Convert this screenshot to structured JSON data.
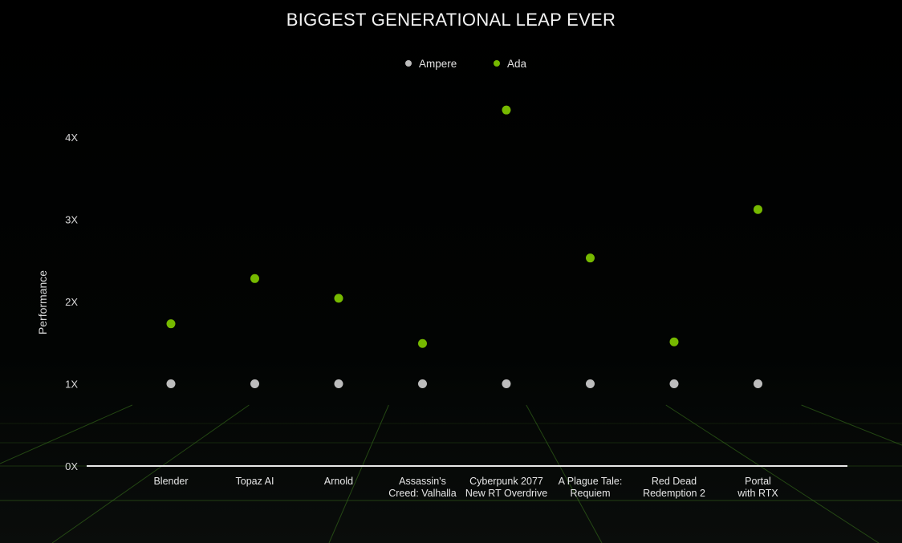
{
  "chart_data": {
    "type": "scatter",
    "title": "BIGGEST GENERATIONAL LEAP EVER",
    "ylabel": "Performance",
    "xlabel": "",
    "ylim": [
      0,
      4.6
    ],
    "yticks": [
      0,
      1,
      2,
      3,
      4
    ],
    "ytick_labels": [
      "0X",
      "1X",
      "2X",
      "3X",
      "4X"
    ],
    "categories": [
      [
        "Blender"
      ],
      [
        "Topaz AI"
      ],
      [
        "Arnold"
      ],
      [
        "Assassin's",
        "Creed: Valhalla"
      ],
      [
        "Cyberpunk 2077",
        "New RT Overdrive"
      ],
      [
        "A Plague Tale:",
        "Requiem"
      ],
      [
        "Red Dead",
        "Redemption 2"
      ],
      [
        "Portal",
        "with RTX"
      ]
    ],
    "legend_position": "top-center",
    "series": [
      {
        "name": "Ampere",
        "color": "#bdbdbd",
        "values": [
          1,
          1,
          1,
          1,
          1,
          1,
          1,
          1
        ]
      },
      {
        "name": "Ada",
        "color": "#76b900",
        "values": [
          1.73,
          2.28,
          2.04,
          1.49,
          4.33,
          2.53,
          1.51,
          3.12
        ]
      }
    ]
  }
}
